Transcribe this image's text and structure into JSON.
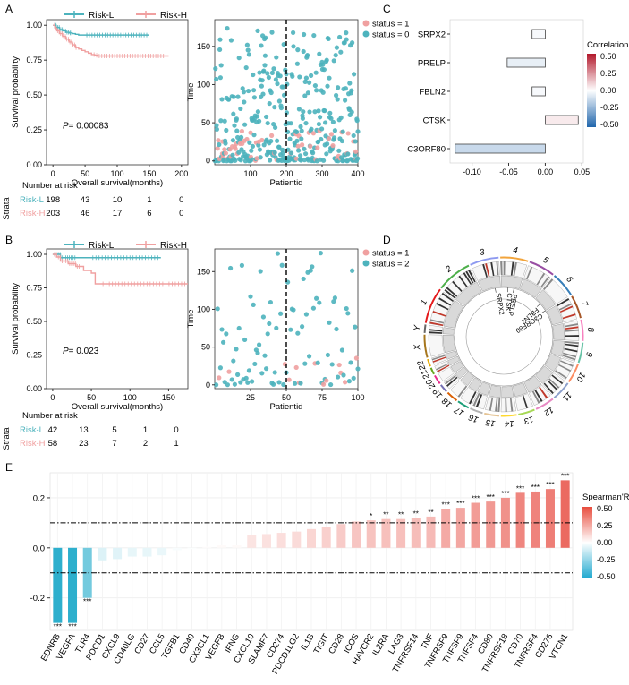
{
  "panels": {
    "A": "A",
    "B": "B",
    "C": "C",
    "D": "D",
    "E": "E"
  },
  "chart_data": [
    {
      "id": "A_km",
      "type": "line",
      "title": "",
      "legend": [
        {
          "label": "Risk-L",
          "color": "#4db3bd"
        },
        {
          "label": "Risk-H",
          "color": "#f0a0a0"
        }
      ],
      "xlabel": "Overall survival(months)",
      "ylabel": "Survival probability",
      "xlim": [
        -10,
        210
      ],
      "ylim": [
        0,
        1.04
      ],
      "xticks": [
        0,
        50,
        100,
        150,
        200
      ],
      "yticks": [
        0,
        0.25,
        0.5,
        0.75,
        1
      ],
      "yticklabels": [
        "0.00",
        "0.25",
        "0.50",
        "0.75",
        "1.00"
      ],
      "pvalue_prefix": "P",
      "pvalue_text": "= 0.00083",
      "series": [
        {
          "name": "Risk-L",
          "color": "#4db3bd",
          "x": [
            0,
            5,
            10,
            15,
            20,
            25,
            30,
            35,
            40,
            150
          ],
          "y": [
            1.0,
            0.985,
            0.97,
            0.96,
            0.95,
            0.945,
            0.94,
            0.935,
            0.93,
            0.93
          ]
        },
        {
          "name": "Risk-H",
          "color": "#f0a0a0",
          "x": [
            0,
            3,
            6,
            10,
            15,
            20,
            25,
            30,
            35,
            40,
            45,
            50,
            55,
            60,
            65,
            70,
            80,
            180
          ],
          "y": [
            1.0,
            0.98,
            0.96,
            0.94,
            0.92,
            0.9,
            0.88,
            0.86,
            0.84,
            0.83,
            0.82,
            0.81,
            0.8,
            0.79,
            0.785,
            0.78,
            0.78,
            0.78
          ]
        }
      ],
      "risk_table": {
        "title": "Number at risk",
        "strata_label": "Strata",
        "rows": [
          {
            "label": "Risk-L",
            "color": "#4db3bd",
            "values": [
              "198",
              "43",
              "10",
              "1",
              "0"
            ]
          },
          {
            "label": "Risk-H",
            "color": "#f0a0a0",
            "values": [
              "203",
              "46",
              "17",
              "6",
              "0"
            ]
          }
        ]
      }
    },
    {
      "id": "A_scatter",
      "type": "scatter",
      "xlabel": "Patientid",
      "ylabel": "Time",
      "xlim": [
        0,
        400
      ],
      "ylim": [
        -5,
        185
      ],
      "xticks": [
        100,
        200,
        300,
        400
      ],
      "yticks": [
        0,
        50,
        100,
        150
      ],
      "cutoff": 200,
      "n": 400,
      "seed": 17,
      "legend": [
        {
          "label": "status = 1",
          "color": "#f0a0a0"
        },
        {
          "label": "status = 0",
          "color": "#4db3bd"
        }
      ]
    },
    {
      "id": "B_km",
      "type": "line",
      "legend": [
        {
          "label": "Risk-L",
          "color": "#4db3bd"
        },
        {
          "label": "Risk-H",
          "color": "#f0a0a0"
        }
      ],
      "xlabel": "Overall survival(months)",
      "ylabel": "Survival probability",
      "xlim": [
        -8,
        175
      ],
      "ylim": [
        0,
        1.04
      ],
      "xticks": [
        0,
        50,
        100,
        150
      ],
      "yticks": [
        0,
        0.25,
        0.5,
        0.75,
        1
      ],
      "yticklabels": [
        "0.00",
        "0.25",
        "0.50",
        "0.75",
        "1.00"
      ],
      "pvalue_prefix": "P",
      "pvalue_text": "= 0.023",
      "series": [
        {
          "name": "Risk-L",
          "color": "#4db3bd",
          "x": [
            0,
            10,
            140
          ],
          "y": [
            1.0,
            0.975,
            0.975
          ]
        },
        {
          "name": "Risk-H",
          "color": "#f0a0a0",
          "x": [
            0,
            5,
            10,
            20,
            30,
            40,
            50,
            55,
            60,
            175
          ],
          "y": [
            1.0,
            0.98,
            0.95,
            0.93,
            0.91,
            0.88,
            0.86,
            0.78,
            0.78,
            0.78
          ]
        }
      ],
      "risk_table": {
        "title": "Number at risk",
        "strata_label": "Strata",
        "rows": [
          {
            "label": "Risk-L",
            "color": "#4db3bd",
            "values": [
              "42",
              "13",
              "5",
              "1",
              "0"
            ]
          },
          {
            "label": "Risk-H",
            "color": "#f0a0a0",
            "values": [
              "58",
              "23",
              "7",
              "2",
              "1"
            ]
          }
        ]
      }
    },
    {
      "id": "B_scatter",
      "type": "scatter",
      "xlabel": "Patientid",
      "ylabel": "Time",
      "xlim": [
        0,
        100
      ],
      "ylim": [
        -5,
        180
      ],
      "xticks": [
        25,
        50,
        75,
        100
      ],
      "yticks": [
        0,
        50,
        100,
        150
      ],
      "cutoff": 50,
      "n": 100,
      "seed": 5,
      "legend": [
        {
          "label": "status = 1",
          "color": "#f0a0a0"
        },
        {
          "label": "status = 2",
          "color": "#4db3bd"
        }
      ]
    },
    {
      "id": "C_corr",
      "type": "bar",
      "orientation": "horizontal",
      "categories": [
        "SRPX2",
        "PRELP",
        "FBLN2",
        "CTSK",
        "C3ORF80"
      ],
      "values": [
        -0.018,
        -0.052,
        -0.018,
        0.045,
        -0.123
      ],
      "xlim": [
        -0.13,
        0.052
      ],
      "xticks": [
        -0.1,
        -0.05,
        0.0,
        0.05
      ],
      "xticklabels": [
        "-0.10",
        "-0.05",
        "0.00",
        "0.05"
      ],
      "colorbar": {
        "title": "Correlation",
        "ticks": [
          "0.50",
          "0.25",
          "0.00",
          "-0.25",
          "-0.50"
        ]
      }
    },
    {
      "id": "D_circos",
      "type": "other",
      "chromosomes": [
        "1",
        "2",
        "3",
        "4",
        "5",
        "6",
        "7",
        "8",
        "9",
        "10",
        "11",
        "12",
        "13",
        "14",
        "15",
        "16",
        "17",
        "18",
        "19",
        "20",
        "21",
        "22",
        "X",
        "Y"
      ],
      "chrom_colors": [
        "#e41a1c",
        "#4daf4a",
        "#8d99f0",
        "#f2a43b",
        "#984ea3",
        "#377eb8",
        "#a65628",
        "#f781bf",
        "#66c2a5",
        "#fc8d62",
        "#8da0cb",
        "#e78ac3",
        "#a6d854",
        "#ffd92f",
        "#e5c494",
        "#b3b3b3",
        "#1b9e77",
        "#d95f02",
        "#7570b3",
        "#e7298a",
        "#66a61e",
        "#e6ab02",
        "#a6761d",
        "#666666"
      ],
      "genes": [
        "SRPX2",
        "CTSK",
        "PRELP",
        "FBLN2",
        "C3ORF80"
      ]
    },
    {
      "id": "E_spearman",
      "type": "bar",
      "categories": [
        "EDNRB",
        "VEGFA",
        "TLR4",
        "PDCD1",
        "CXCL9",
        "CD40LG",
        "CD27",
        "CCL5",
        "TGFB1",
        "CD40",
        "CX3CL1",
        "VEGFB",
        "IFNG",
        "CXCL10",
        "SLAMF7",
        "CD274",
        "PDCD1LG2",
        "IL1B",
        "TIGIT",
        "CD28",
        "ICOS",
        "HAVCR2",
        "IL2RA",
        "LAG3",
        "TNFRSF14",
        "TNF",
        "TNFRSF9",
        "TNFSF9",
        "TNFSF4",
        "CD80",
        "TNFRSF18",
        "CD70",
        "TNFRSF4",
        "CD276",
        "VTCN1"
      ],
      "values": [
        -0.3,
        -0.3,
        -0.2,
        -0.05,
        -0.045,
        -0.035,
        -0.035,
        -0.03,
        -0.01,
        -0.005,
        0.005,
        0.01,
        0.01,
        0.05,
        0.055,
        0.06,
        0.065,
        0.075,
        0.085,
        0.095,
        0.105,
        0.11,
        0.115,
        0.115,
        0.12,
        0.125,
        0.155,
        0.16,
        0.18,
        0.185,
        0.2,
        0.22,
        0.225,
        0.235,
        0.27
      ],
      "stars": [
        "***",
        "***",
        "***",
        "",
        "",
        "",
        "",
        "",
        "",
        "",
        "",
        "",
        "",
        "",
        "",
        "",
        "",
        "",
        "",
        "",
        "",
        "*",
        "**",
        "**",
        "**",
        "**",
        "***",
        "***",
        "***",
        "***",
        "***",
        "***",
        "***",
        "***",
        "***"
      ],
      "ylim": [
        -0.33,
        0.3
      ],
      "yticks": [
        -0.2,
        0,
        0.2
      ],
      "yticklabels": [
        "-0.2",
        "0.0",
        "0.2"
      ],
      "thresholds": [
        0.1,
        -0.1
      ],
      "colorbar": {
        "title": "Spearman'R",
        "ticks": [
          "0.50",
          "0.25",
          "0.00",
          "-0.25",
          "-0.50"
        ]
      }
    }
  ]
}
